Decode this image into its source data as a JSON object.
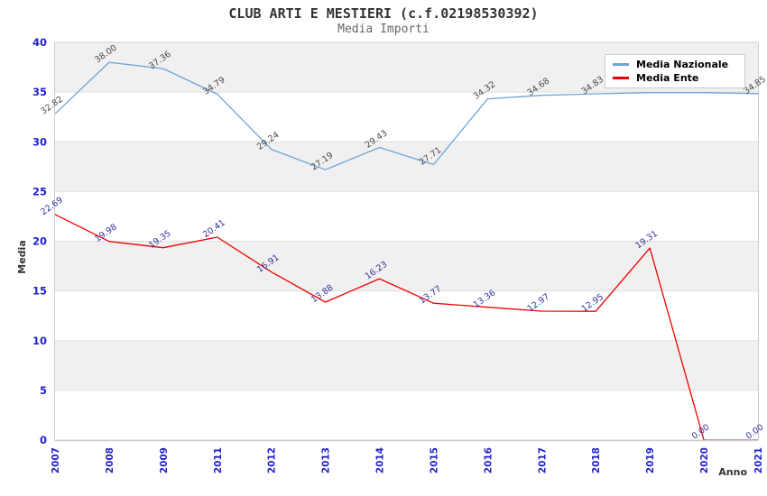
{
  "header": {
    "title": "CLUB ARTI E MESTIERI (c.f.02198530392)",
    "subtitle": "Media Importi"
  },
  "chart_data": {
    "type": "line",
    "title": "CLUB ARTI E MESTIERI (c.f.02198530392)",
    "subtitle": "Media Importi",
    "xlabel": "Anno",
    "ylabel": "Media",
    "ylim": [
      0,
      40
    ],
    "ytick_step": 5,
    "grid": "horizontal-bands",
    "legend_position": "top-right",
    "categories": [
      "2007",
      "2008",
      "2009",
      "2011",
      "2012",
      "2013",
      "2014",
      "2015",
      "2016",
      "2017",
      "2018",
      "2019",
      "2020",
      "2021"
    ],
    "series": [
      {
        "name": "Media Nazionale",
        "color": "#6ea4da",
        "label_color": "#4a4a4a",
        "values": [
          32.82,
          38.0,
          37.36,
          34.79,
          29.24,
          27.19,
          29.43,
          27.71,
          34.32,
          34.68,
          34.83,
          34.95,
          34.95,
          34.85
        ],
        "labels": [
          "32.82",
          "38.00",
          "37.36",
          "34.79",
          "29.24",
          "27.19",
          "29.43",
          "27.71",
          "34.32",
          "34.68",
          "34.83",
          null,
          null,
          "34.85"
        ]
      },
      {
        "name": "Media Ente",
        "color": "#ee0000",
        "label_color": "#333399",
        "values": [
          22.69,
          19.98,
          19.35,
          20.41,
          16.91,
          13.88,
          16.23,
          13.77,
          13.36,
          12.97,
          12.95,
          19.31,
          0.0,
          0.0
        ],
        "labels": [
          "22.69",
          "19.98",
          "19.35",
          "20.41",
          "16.91",
          "13.88",
          "16.23",
          "13.77",
          "13.36",
          "12.97",
          "12.95",
          "19.31",
          "0.00",
          "0.00"
        ]
      }
    ],
    "colors": {
      "band": "#f0f0f0",
      "gridline": "#e0e0e0",
      "border": "#cccccc",
      "tick_label": "#2222cc",
      "axis_title": "#333333"
    }
  }
}
